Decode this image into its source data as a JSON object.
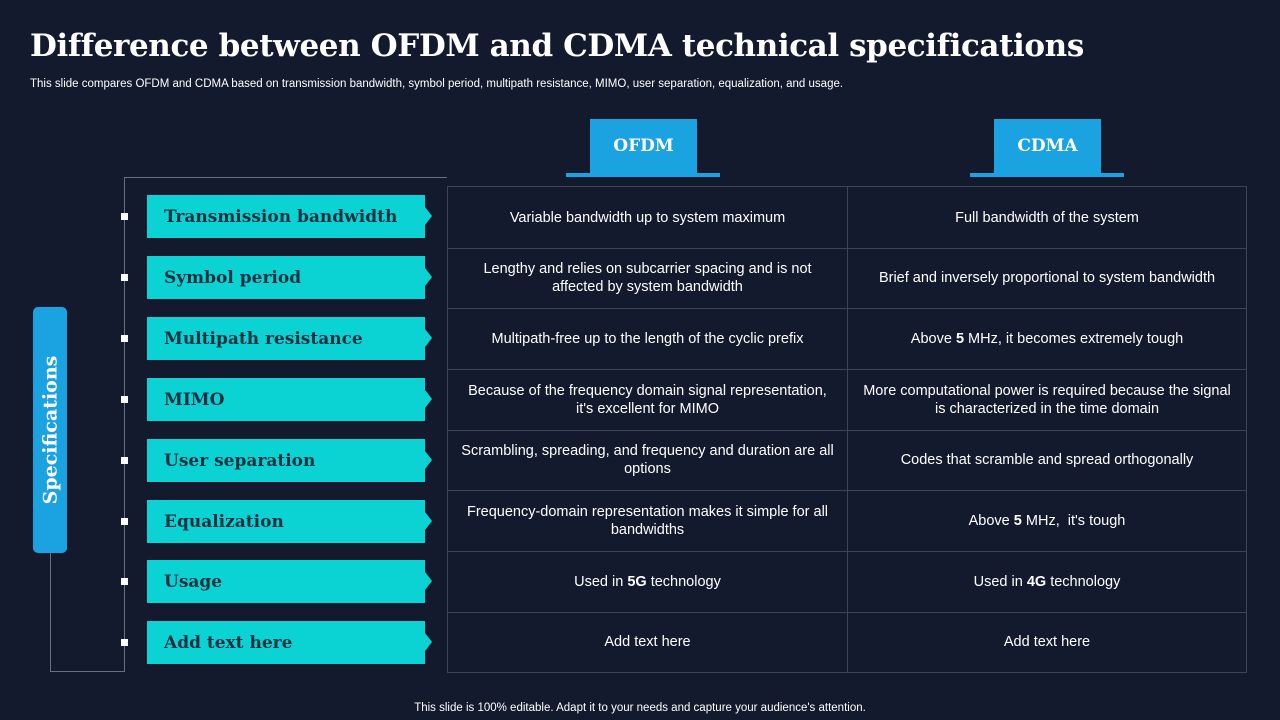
{
  "title": "Difference between OFDM and CDMA technical specifications",
  "subtitle": "This slide compares OFDM and CDMA  based on transmission bandwidth, symbol period, multipath resistance, MIMO,  user separation, equalization, and usage.",
  "columns": {
    "ofdm": "OFDM",
    "cdma": "CDMA"
  },
  "specifications_label": "Specifications",
  "rows": [
    {
      "label": "Transmission bandwidth",
      "ofdm": "Variable bandwidth up to system maximum",
      "cdma": "Full bandwidth of the system"
    },
    {
      "label": "Symbol period",
      "ofdm": "Lengthy and relies on subcarrier spacing and is not affected by system bandwidth",
      "cdma": "Brief and inversely proportional to system bandwidth"
    },
    {
      "label": "Multipath resistance",
      "ofdm": "Multipath-free up to the length of the cyclic prefix",
      "cdma_pre": "Above ",
      "cdma_bold": "5",
      "cdma_post": " MHz, it becomes extremely tough"
    },
    {
      "label": "MIMO",
      "ofdm": "Because of the frequency domain signal representation, it's excellent for MIMO",
      "cdma": "More computational power is required because the signal is characterized in the time domain"
    },
    {
      "label": "User separation",
      "ofdm": "Scrambling, spreading, and frequency and duration are all options",
      "cdma": "Codes that scramble and spread orthogonally"
    },
    {
      "label": "Equalization",
      "ofdm": "Frequency-domain representation makes it simple for all bandwidths",
      "cdma_pre": "Above ",
      "cdma_bold": "5",
      "cdma_post": " MHz,  it's tough"
    },
    {
      "label": "Usage",
      "ofdm_pre": "Used in ",
      "ofdm_bold": "5G",
      "ofdm_post": " technology",
      "cdma_pre": "Used in ",
      "cdma_bold": "4G",
      "cdma_post": " technology"
    },
    {
      "label": "Add text here",
      "ofdm": "Add text here",
      "cdma": "Add text here"
    }
  ],
  "footer": "This slide is 100% editable. Adapt it to your needs and capture your audience's attention.",
  "colors": {
    "background": "#141a2e",
    "accent_blue": "#1aa3e0",
    "accent_cyan": "#0cd3d3"
  }
}
